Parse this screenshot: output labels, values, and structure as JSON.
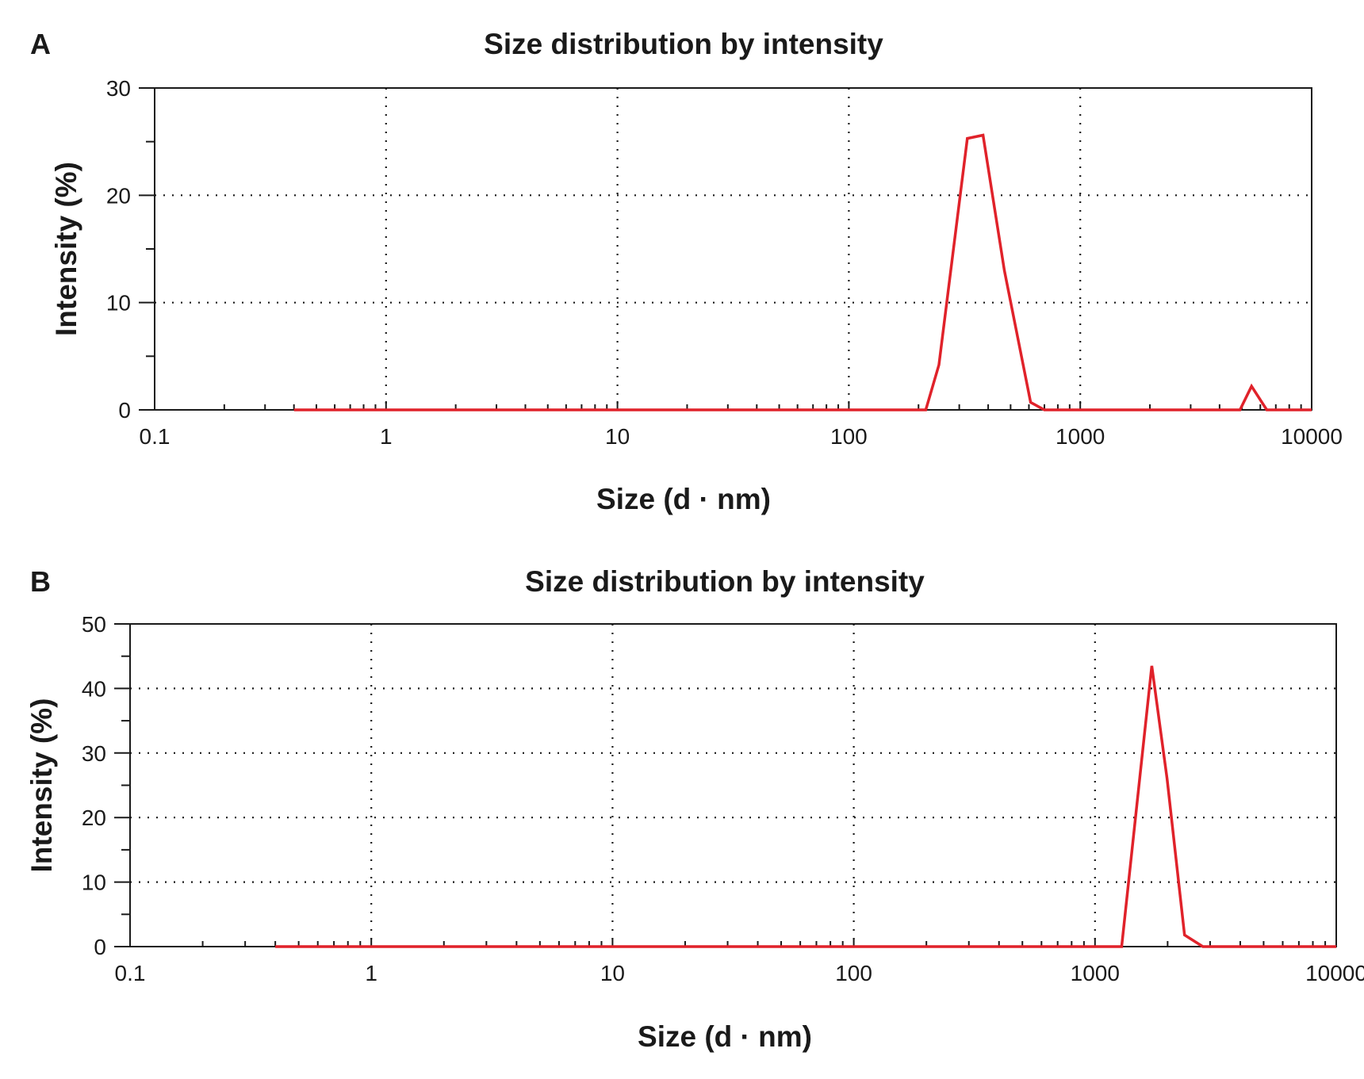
{
  "colors": {
    "series": "#e0222a",
    "axis": "#1a1a1a",
    "background": "#ffffff"
  },
  "chart_data": [
    {
      "panel": "A",
      "type": "line",
      "title": "Size distribution by intensity",
      "xlabel": "Size (d · nm)",
      "ylabel": "Intensity (%)",
      "xscale": "log",
      "xlim": [
        0.1,
        10000
      ],
      "ylim": [
        0,
        30
      ],
      "xticks": [
        0.1,
        1,
        10,
        100,
        1000,
        10000
      ],
      "xtick_labels": [
        "0.1",
        "1",
        "10",
        "100",
        "1000",
        "10000"
      ],
      "yticks": [
        0,
        10,
        20,
        30
      ],
      "ytick_labels": [
        "0",
        "10",
        "20",
        "30"
      ],
      "y_minor_step": 5,
      "grid": true,
      "series": [
        {
          "x": [
            0.4,
            215,
            245,
            325,
            380,
            470,
            610,
            700,
            1000,
            4900,
            5500,
            6400,
            10000
          ],
          "y": [
            0,
            0,
            4.2,
            25.3,
            25.6,
            13.0,
            0.7,
            0,
            0,
            0,
            2.2,
            0,
            0
          ]
        }
      ]
    },
    {
      "panel": "B",
      "type": "line",
      "title": "Size distribution by intensity",
      "xlabel": "Size (d · nm)",
      "ylabel": "Intensity (%)",
      "xscale": "log",
      "xlim": [
        0.1,
        10000
      ],
      "ylim": [
        0,
        50
      ],
      "xticks": [
        0.1,
        1,
        10,
        100,
        1000,
        10000
      ],
      "xtick_labels": [
        "0.1",
        "1",
        "10",
        "100",
        "1000",
        "10000"
      ],
      "yticks": [
        0,
        10,
        20,
        30,
        40,
        50
      ],
      "ytick_labels": [
        "0",
        "10",
        "20",
        "30",
        "40",
        "50"
      ],
      "y_minor_step": 5,
      "grid": true,
      "series": [
        {
          "x": [
            0.4,
            1290,
            1720,
            1990,
            2350,
            2800,
            10000
          ],
          "y": [
            0,
            0,
            43.5,
            26.0,
            1.8,
            0,
            0
          ]
        }
      ]
    }
  ]
}
